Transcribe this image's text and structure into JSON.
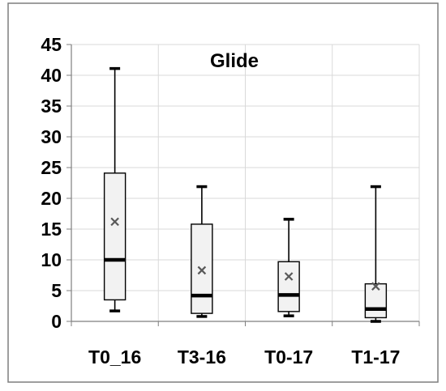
{
  "chart_data": {
    "type": "box",
    "title": "Glide",
    "xlabel": "",
    "ylabel": "",
    "ylim": [
      0,
      45
    ],
    "yticks": [
      0,
      5,
      10,
      15,
      20,
      25,
      30,
      35,
      40,
      45
    ],
    "grid": true,
    "categories": [
      "T0_16",
      "T3-16",
      "T0-17",
      "T1-17"
    ],
    "boxes": [
      {
        "category": "T0_16",
        "min": 1.7,
        "q1": 3.5,
        "median": 10.0,
        "q3": 24.1,
        "max": 41.1,
        "mean": 16.2
      },
      {
        "category": "T3-16",
        "min": 0.8,
        "q1": 1.3,
        "median": 4.2,
        "q3": 15.8,
        "max": 21.9,
        "mean": 8.3
      },
      {
        "category": "T0-17",
        "min": 0.9,
        "q1": 1.6,
        "median": 4.3,
        "q3": 9.7,
        "max": 16.6,
        "mean": 7.3
      },
      {
        "category": "T1-17",
        "min": 0.0,
        "q1": 0.6,
        "median": 2.0,
        "q3": 6.1,
        "max": 21.9,
        "mean": 5.7
      }
    ],
    "colors": {
      "box_fill": "#f2f2f2",
      "stroke": "#000000",
      "grid": "#d9d9d9",
      "mean_marker": "#595959",
      "frame": "#7f7f7f"
    }
  }
}
